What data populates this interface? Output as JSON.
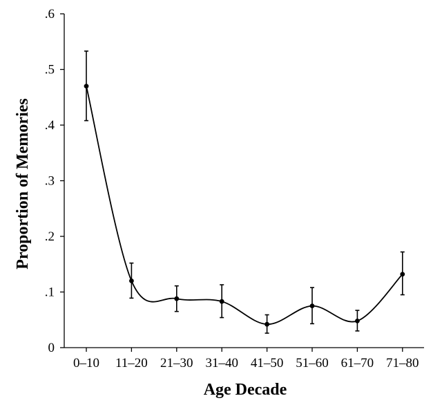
{
  "chart_data": {
    "type": "line",
    "title": "",
    "xlabel": "Age Decade",
    "ylabel": "Proportion of Memories",
    "ylim": [
      0,
      0.6
    ],
    "yticks": [
      {
        "value": 0,
        "label": "0"
      },
      {
        "value": 0.1,
        "label": ".1"
      },
      {
        "value": 0.2,
        "label": ".2"
      },
      {
        "value": 0.3,
        "label": ".3"
      },
      {
        "value": 0.4,
        "label": ".4"
      },
      {
        "value": 0.5,
        "label": ".5"
      },
      {
        "value": 0.6,
        "label": ".6"
      }
    ],
    "categories": [
      "0–10",
      "11–20",
      "21–30",
      "31–40",
      "41–50",
      "51–60",
      "61–70",
      "71–80"
    ],
    "values": [
      0.47,
      0.12,
      0.088,
      0.083,
      0.042,
      0.075,
      0.048,
      0.132
    ],
    "error_low": [
      0.408,
      0.089,
      0.065,
      0.054,
      0.026,
      0.043,
      0.03,
      0.095
    ],
    "error_high": [
      0.533,
      0.152,
      0.111,
      0.113,
      0.059,
      0.108,
      0.067,
      0.172
    ],
    "smoothed_line": true,
    "grid": false,
    "legend": "none",
    "color": "#000000"
  }
}
